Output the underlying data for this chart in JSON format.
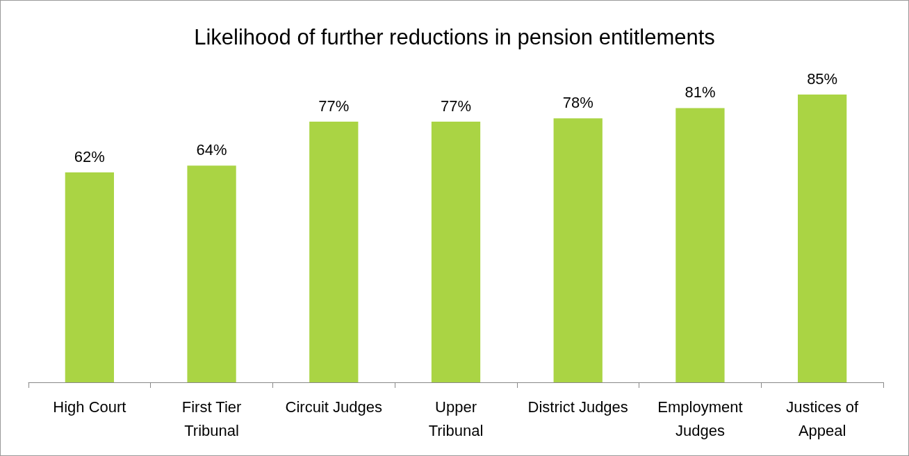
{
  "chart_data": {
    "type": "bar",
    "title": "Likelihood of further reductions in pension entitlements",
    "categories": [
      "High Court",
      "First Tier\nTribunal",
      "Circuit Judges",
      "Upper\nTribunal",
      "District Judges",
      "Employment\nJudges",
      "Justices of\nAppeal"
    ],
    "values": [
      62,
      64,
      77,
      77,
      78,
      81,
      85
    ],
    "value_labels": [
      "62%",
      "64%",
      "77%",
      "77%",
      "78%",
      "81%",
      "85%"
    ],
    "color": "#aad444"
  }
}
